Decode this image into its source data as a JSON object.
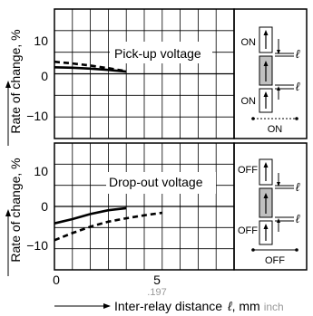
{
  "colors": {
    "curve": "#000000",
    "grid": "#000000",
    "relay_fill": "#c0c0c0",
    "background": "#ffffff"
  },
  "chart_data": [
    {
      "type": "line",
      "title": "Pick-up voltage",
      "ylabel": "Rate of change, %",
      "ylim": [
        -15,
        15
      ],
      "xlim": [
        0,
        10
      ],
      "y_ticks": [
        "10",
        "0",
        "−10"
      ],
      "grid": true,
      "series": [
        {
          "style": "solid",
          "x": [
            0,
            1,
            2,
            3,
            4
          ],
          "y": [
            1.5,
            1.4,
            1.2,
            0.9,
            0.5
          ]
        },
        {
          "style": "dashed",
          "x": [
            0,
            1,
            2,
            3,
            4
          ],
          "y": [
            2.8,
            2.4,
            1.9,
            1.3,
            0.6
          ]
        }
      ]
    },
    {
      "type": "line",
      "title": "Drop-out voltage",
      "ylabel": "Rate of change, %",
      "xlabel": "Inter-relay distance",
      "x_symbol": "ℓ",
      "x_unit": ", mm",
      "x_unit_alt": "inch",
      "ylim": [
        -15,
        15
      ],
      "xlim": [
        0,
        10
      ],
      "y_ticks": [
        "10",
        "0",
        "−10"
      ],
      "x_ticks": [
        "0",
        "5"
      ],
      "x_tick_sub": ".197",
      "grid": true,
      "series": [
        {
          "style": "solid",
          "x": [
            0,
            1,
            2,
            3,
            4
          ],
          "y": [
            -4,
            -3,
            -1.8,
            -0.9,
            -0.4
          ]
        },
        {
          "style": "dashed",
          "x": [
            0,
            1,
            2,
            3,
            4,
            5,
            6
          ],
          "y": [
            -8,
            -6.3,
            -4.8,
            -3.6,
            -2.8,
            -2.1,
            -1.5
          ]
        }
      ]
    }
  ],
  "diagrams": {
    "top": {
      "state_top": "ON",
      "state_bottom": "ON",
      "footer": "ON",
      "symbol": "ℓ"
    },
    "bottom": {
      "state_top": "OFF",
      "state_bottom": "OFF",
      "footer": "OFF",
      "symbol": "ℓ"
    }
  }
}
